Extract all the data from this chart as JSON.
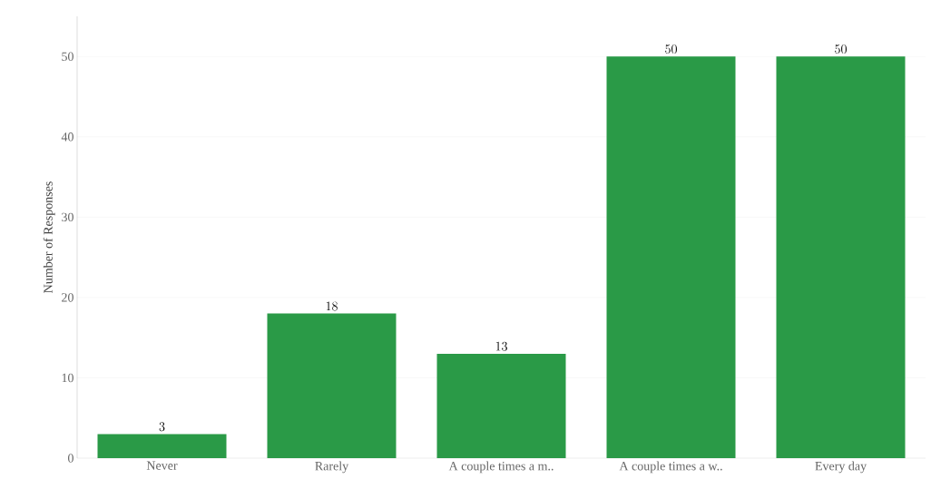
{
  "chart_data": {
    "type": "bar",
    "ylabel": "Number of Responses",
    "categories": [
      "Never",
      "Rarely",
      "A couple times a m..",
      "A couple times a w..",
      "Every day"
    ],
    "values": [
      3,
      18,
      13,
      50,
      50
    ],
    "color": "#2a9a47",
    "ylim": [
      0,
      55
    ],
    "yticks": [
      0,
      10,
      20,
      30,
      40,
      50
    ],
    "grid": "y",
    "data_labels": true
  }
}
